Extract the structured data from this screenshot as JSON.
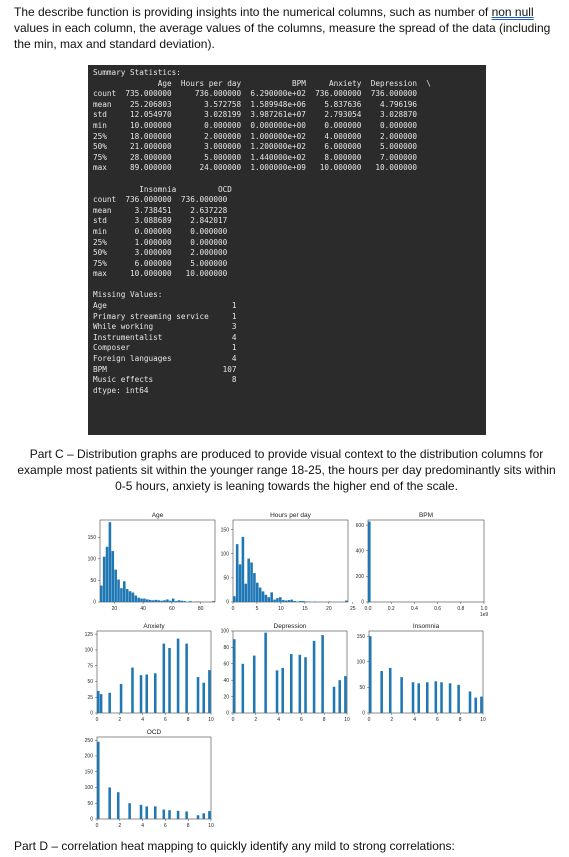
{
  "intro": {
    "before": "The describe function is providing insights into the numerical columns, such as number of ",
    "link": "non null",
    "after": " values in each column, the average values of the columns, measure the spread of the data (including the min, max and standard deviation)."
  },
  "console": {
    "lines": [
      "Summary Statistics:",
      "              Age  Hours per day           BPM     Anxiety  Depression  \\",
      "count  735.000000     736.000000  6.290000e+02  736.000000  736.000000",
      "mean    25.206803       3.572758  1.589948e+06    5.837636    4.796196",
      "std     12.054970       3.028199  3.987261e+07    2.793054    3.028870",
      "min     10.000000       0.000000  0.000000e+00    0.000000    0.000000",
      "25%     18.000000       2.000000  1.000000e+02    4.000000    2.000000",
      "50%     21.000000       3.000000  1.200000e+02    6.000000    5.000000",
      "75%     28.000000       5.000000  1.440000e+02    8.000000    7.000000",
      "max     89.000000      24.000000  1.000000e+09   10.000000   10.000000",
      "",
      "          Insomnia         OCD",
      "count  736.000000  736.000000",
      "mean     3.738451    2.637228",
      "std      3.088689    2.842017",
      "min      0.000000    0.000000",
      "25%      1.000000    0.000000",
      "50%      3.000000    2.000000",
      "75%      6.000000    5.000000",
      "max     10.000000   10.000000",
      "",
      "Missing Values:",
      "Age                           1",
      "Primary streaming service     1",
      "While working                 3",
      "Instrumentalist               4",
      "Composer                      1",
      "Foreign languages             4",
      "BPM                         107",
      "Music effects                 8",
      "dtype: int64"
    ]
  },
  "partc": "Part C – Distribution graphs are produced to provide visual context to the distribution columns for example most patients sit within the younger range 18-25, the hours per day predominantly sits within 0-5 hours, anxiety is leaning towards the higher end of the scale.",
  "partd": "Part D – correlation heat mapping to quickly identify any mild to strong correlations:",
  "colors": {
    "bar": "#1f77b4",
    "console_bg": "#2b2b2b"
  },
  "chart_data": [
    {
      "type": "bar",
      "title": "Age",
      "xlim": [
        10,
        90
      ],
      "ylim": [
        0,
        190
      ],
      "xticks": [
        "20",
        "40",
        "60",
        "80"
      ],
      "yticks": [
        "0",
        "50",
        "100",
        "150"
      ],
      "bins": [
        [
          10,
          12,
          38
        ],
        [
          12,
          14,
          105
        ],
        [
          14,
          16,
          128
        ],
        [
          16,
          18,
          185
        ],
        [
          18,
          20,
          118
        ],
        [
          20,
          22,
          75
        ],
        [
          22,
          24,
          52
        ],
        [
          24,
          26,
          32
        ],
        [
          26,
          28,
          48
        ],
        [
          28,
          30,
          30
        ],
        [
          30,
          32,
          25
        ],
        [
          32,
          34,
          22
        ],
        [
          34,
          36,
          15
        ],
        [
          36,
          38,
          10
        ],
        [
          38,
          40,
          8
        ],
        [
          40,
          42,
          8
        ],
        [
          42,
          44,
          6
        ],
        [
          44,
          46,
          5
        ],
        [
          46,
          48,
          4
        ],
        [
          48,
          50,
          5
        ],
        [
          50,
          52,
          4
        ],
        [
          52,
          54,
          3
        ],
        [
          54,
          56,
          4
        ],
        [
          56,
          58,
          6
        ],
        [
          58,
          60,
          3
        ],
        [
          60,
          62,
          8
        ],
        [
          62,
          64,
          2
        ],
        [
          64,
          66,
          4
        ],
        [
          66,
          68,
          3
        ],
        [
          68,
          70,
          2
        ],
        [
          70,
          72,
          0
        ],
        [
          72,
          74,
          2
        ],
        [
          74,
          76,
          0
        ],
        [
          76,
          78,
          1
        ],
        [
          78,
          80,
          1
        ],
        [
          80,
          82,
          0
        ],
        [
          82,
          84,
          0
        ],
        [
          84,
          86,
          0
        ],
        [
          86,
          88,
          0
        ],
        [
          88,
          90,
          2
        ]
      ]
    },
    {
      "type": "bar",
      "title": "Hours per day",
      "xlim": [
        0,
        24
      ],
      "ylim": [
        0,
        170
      ],
      "xticks": [
        "0",
        "5",
        "10",
        "15",
        "20",
        "25"
      ],
      "yticks": [
        "0",
        "50",
        "100",
        "150"
      ],
      "bins": [
        [
          0,
          0.6,
          12
        ],
        [
          0.6,
          1.2,
          120
        ],
        [
          1.2,
          1.8,
          78
        ],
        [
          1.8,
          2.4,
          135
        ],
        [
          2.4,
          3.0,
          38
        ],
        [
          3.0,
          3.6,
          90
        ],
        [
          3.6,
          4.2,
          82
        ],
        [
          4.2,
          4.8,
          60
        ],
        [
          4.8,
          5.4,
          40
        ],
        [
          5.4,
          6.0,
          30
        ],
        [
          6.0,
          6.6,
          22
        ],
        [
          6.6,
          7.2,
          15
        ],
        [
          7.2,
          7.8,
          10
        ],
        [
          7.8,
          8.4,
          20
        ],
        [
          8.4,
          9.0,
          5
        ],
        [
          9.0,
          9.6,
          8
        ],
        [
          9.6,
          10.2,
          10
        ],
        [
          10.2,
          10.8,
          4
        ],
        [
          10.8,
          11.4,
          3
        ],
        [
          11.4,
          12.0,
          4
        ],
        [
          12.0,
          12.6,
          5
        ],
        [
          12.6,
          13.2,
          2
        ],
        [
          13.2,
          13.8,
          1
        ],
        [
          13.8,
          14.4,
          2
        ],
        [
          14.4,
          15.0,
          2
        ],
        [
          15.0,
          15.6,
          1
        ],
        [
          15.6,
          16.2,
          1
        ],
        [
          16.2,
          16.8,
          0
        ],
        [
          16.8,
          17.4,
          1
        ],
        [
          17.4,
          18.0,
          0
        ],
        [
          18.0,
          18.6,
          0
        ],
        [
          18.6,
          19.2,
          0
        ],
        [
          19.2,
          19.8,
          0
        ],
        [
          19.8,
          20.4,
          1
        ],
        [
          20.4,
          21.0,
          0
        ],
        [
          21.0,
          21.6,
          0
        ],
        [
          21.6,
          22.2,
          0
        ],
        [
          22.2,
          22.8,
          0
        ],
        [
          22.8,
          23.4,
          0
        ],
        [
          23.4,
          24.0,
          3
        ]
      ]
    },
    {
      "type": "bar",
      "title": "BPM",
      "xlim": [
        0,
        1.0
      ],
      "ylim": [
        0,
        640
      ],
      "xticks": [
        "0.0",
        "0.2",
        "0.4",
        "0.6",
        "0.8",
        "1.0"
      ],
      "yticks": [
        "0",
        "200",
        "400",
        "600"
      ],
      "xlabel_note": "1e9",
      "bins": [
        [
          0,
          0.025,
          628
        ],
        [
          0.975,
          1.0,
          1
        ]
      ]
    },
    {
      "type": "bar",
      "title": "Anxiety",
      "xlim": [
        0,
        10
      ],
      "ylim": [
        0,
        130
      ],
      "xticks": [
        "0",
        "2",
        "4",
        "6",
        "8",
        "10"
      ],
      "yticks": [
        "0",
        "25",
        "50",
        "75",
        "100",
        "125"
      ],
      "bins": [
        [
          0,
          0.25,
          35
        ],
        [
          0.25,
          0.5,
          30
        ],
        [
          1,
          1.25,
          32
        ],
        [
          2,
          2.25,
          46
        ],
        [
          3,
          3.25,
          72
        ],
        [
          3.75,
          4.0,
          60
        ],
        [
          4.25,
          4.5,
          61
        ],
        [
          5,
          5.25,
          63
        ],
        [
          5.75,
          6.0,
          110
        ],
        [
          6.25,
          6.5,
          103
        ],
        [
          7,
          7.25,
          118
        ],
        [
          7.75,
          8.0,
          110
        ],
        [
          8.75,
          9.0,
          57
        ],
        [
          9.25,
          9.5,
          48
        ],
        [
          9.75,
          10.0,
          68
        ]
      ]
    },
    {
      "type": "bar",
      "title": "Depression",
      "xlim": [
        0,
        10
      ],
      "ylim": [
        0,
        100
      ],
      "xticks": [
        "0",
        "2",
        "4",
        "6",
        "8",
        "10"
      ],
      "yticks": [
        "0",
        "20",
        "40",
        "60",
        "80",
        "100"
      ],
      "bins": [
        [
          0,
          0.25,
          90
        ],
        [
          0.75,
          1.0,
          60
        ],
        [
          1.75,
          2.0,
          70
        ],
        [
          2.75,
          3.0,
          98
        ],
        [
          3.75,
          4.0,
          52
        ],
        [
          4.25,
          4.5,
          55
        ],
        [
          5,
          5.25,
          72
        ],
        [
          5.75,
          6.0,
          71
        ],
        [
          6.25,
          6.5,
          68
        ],
        [
          7,
          7.25,
          88
        ],
        [
          7.75,
          8.0,
          95
        ],
        [
          8.75,
          9.0,
          32
        ],
        [
          9.25,
          9.5,
          40
        ],
        [
          9.75,
          10.0,
          45
        ]
      ]
    },
    {
      "type": "bar",
      "title": "Insomnia",
      "xlim": [
        0,
        10
      ],
      "ylim": [
        0,
        160
      ],
      "xticks": [
        "0",
        "2",
        "4",
        "6",
        "8",
        "10"
      ],
      "yticks": [
        "0",
        "50",
        "100",
        "150"
      ],
      "bins": [
        [
          0,
          0.25,
          150
        ],
        [
          1,
          1.25,
          82
        ],
        [
          1.75,
          2.0,
          88
        ],
        [
          2.75,
          3.0,
          70
        ],
        [
          3.75,
          4.0,
          60
        ],
        [
          4.25,
          4.5,
          58
        ],
        [
          5,
          5.25,
          60
        ],
        [
          5.75,
          6.0,
          62
        ],
        [
          6.25,
          6.5,
          60
        ],
        [
          7,
          7.25,
          58
        ],
        [
          7.75,
          8.0,
          55
        ],
        [
          8.75,
          9.0,
          42
        ],
        [
          9.25,
          9.5,
          30
        ],
        [
          9.75,
          10.0,
          32
        ]
      ]
    },
    {
      "type": "bar",
      "title": "OCD",
      "xlim": [
        0,
        10
      ],
      "ylim": [
        0,
        260
      ],
      "xticks": [
        "0",
        "2",
        "4",
        "6",
        "8",
        "10"
      ],
      "yticks": [
        "0",
        "50",
        "100",
        "150",
        "200",
        "250"
      ],
      "bins": [
        [
          0,
          0.25,
          245
        ],
        [
          1,
          1.25,
          100
        ],
        [
          1.75,
          2.0,
          85
        ],
        [
          2.75,
          3.0,
          50
        ],
        [
          3.75,
          4.0,
          45
        ],
        [
          4.25,
          4.5,
          40
        ],
        [
          5,
          5.25,
          40
        ],
        [
          5.75,
          6.0,
          30
        ],
        [
          6.25,
          6.5,
          28
        ],
        [
          7,
          7.25,
          26
        ],
        [
          7.75,
          8.0,
          24
        ],
        [
          8.75,
          9.0,
          12
        ],
        [
          9.25,
          9.5,
          18
        ],
        [
          9.75,
          10.0,
          25
        ]
      ]
    }
  ]
}
